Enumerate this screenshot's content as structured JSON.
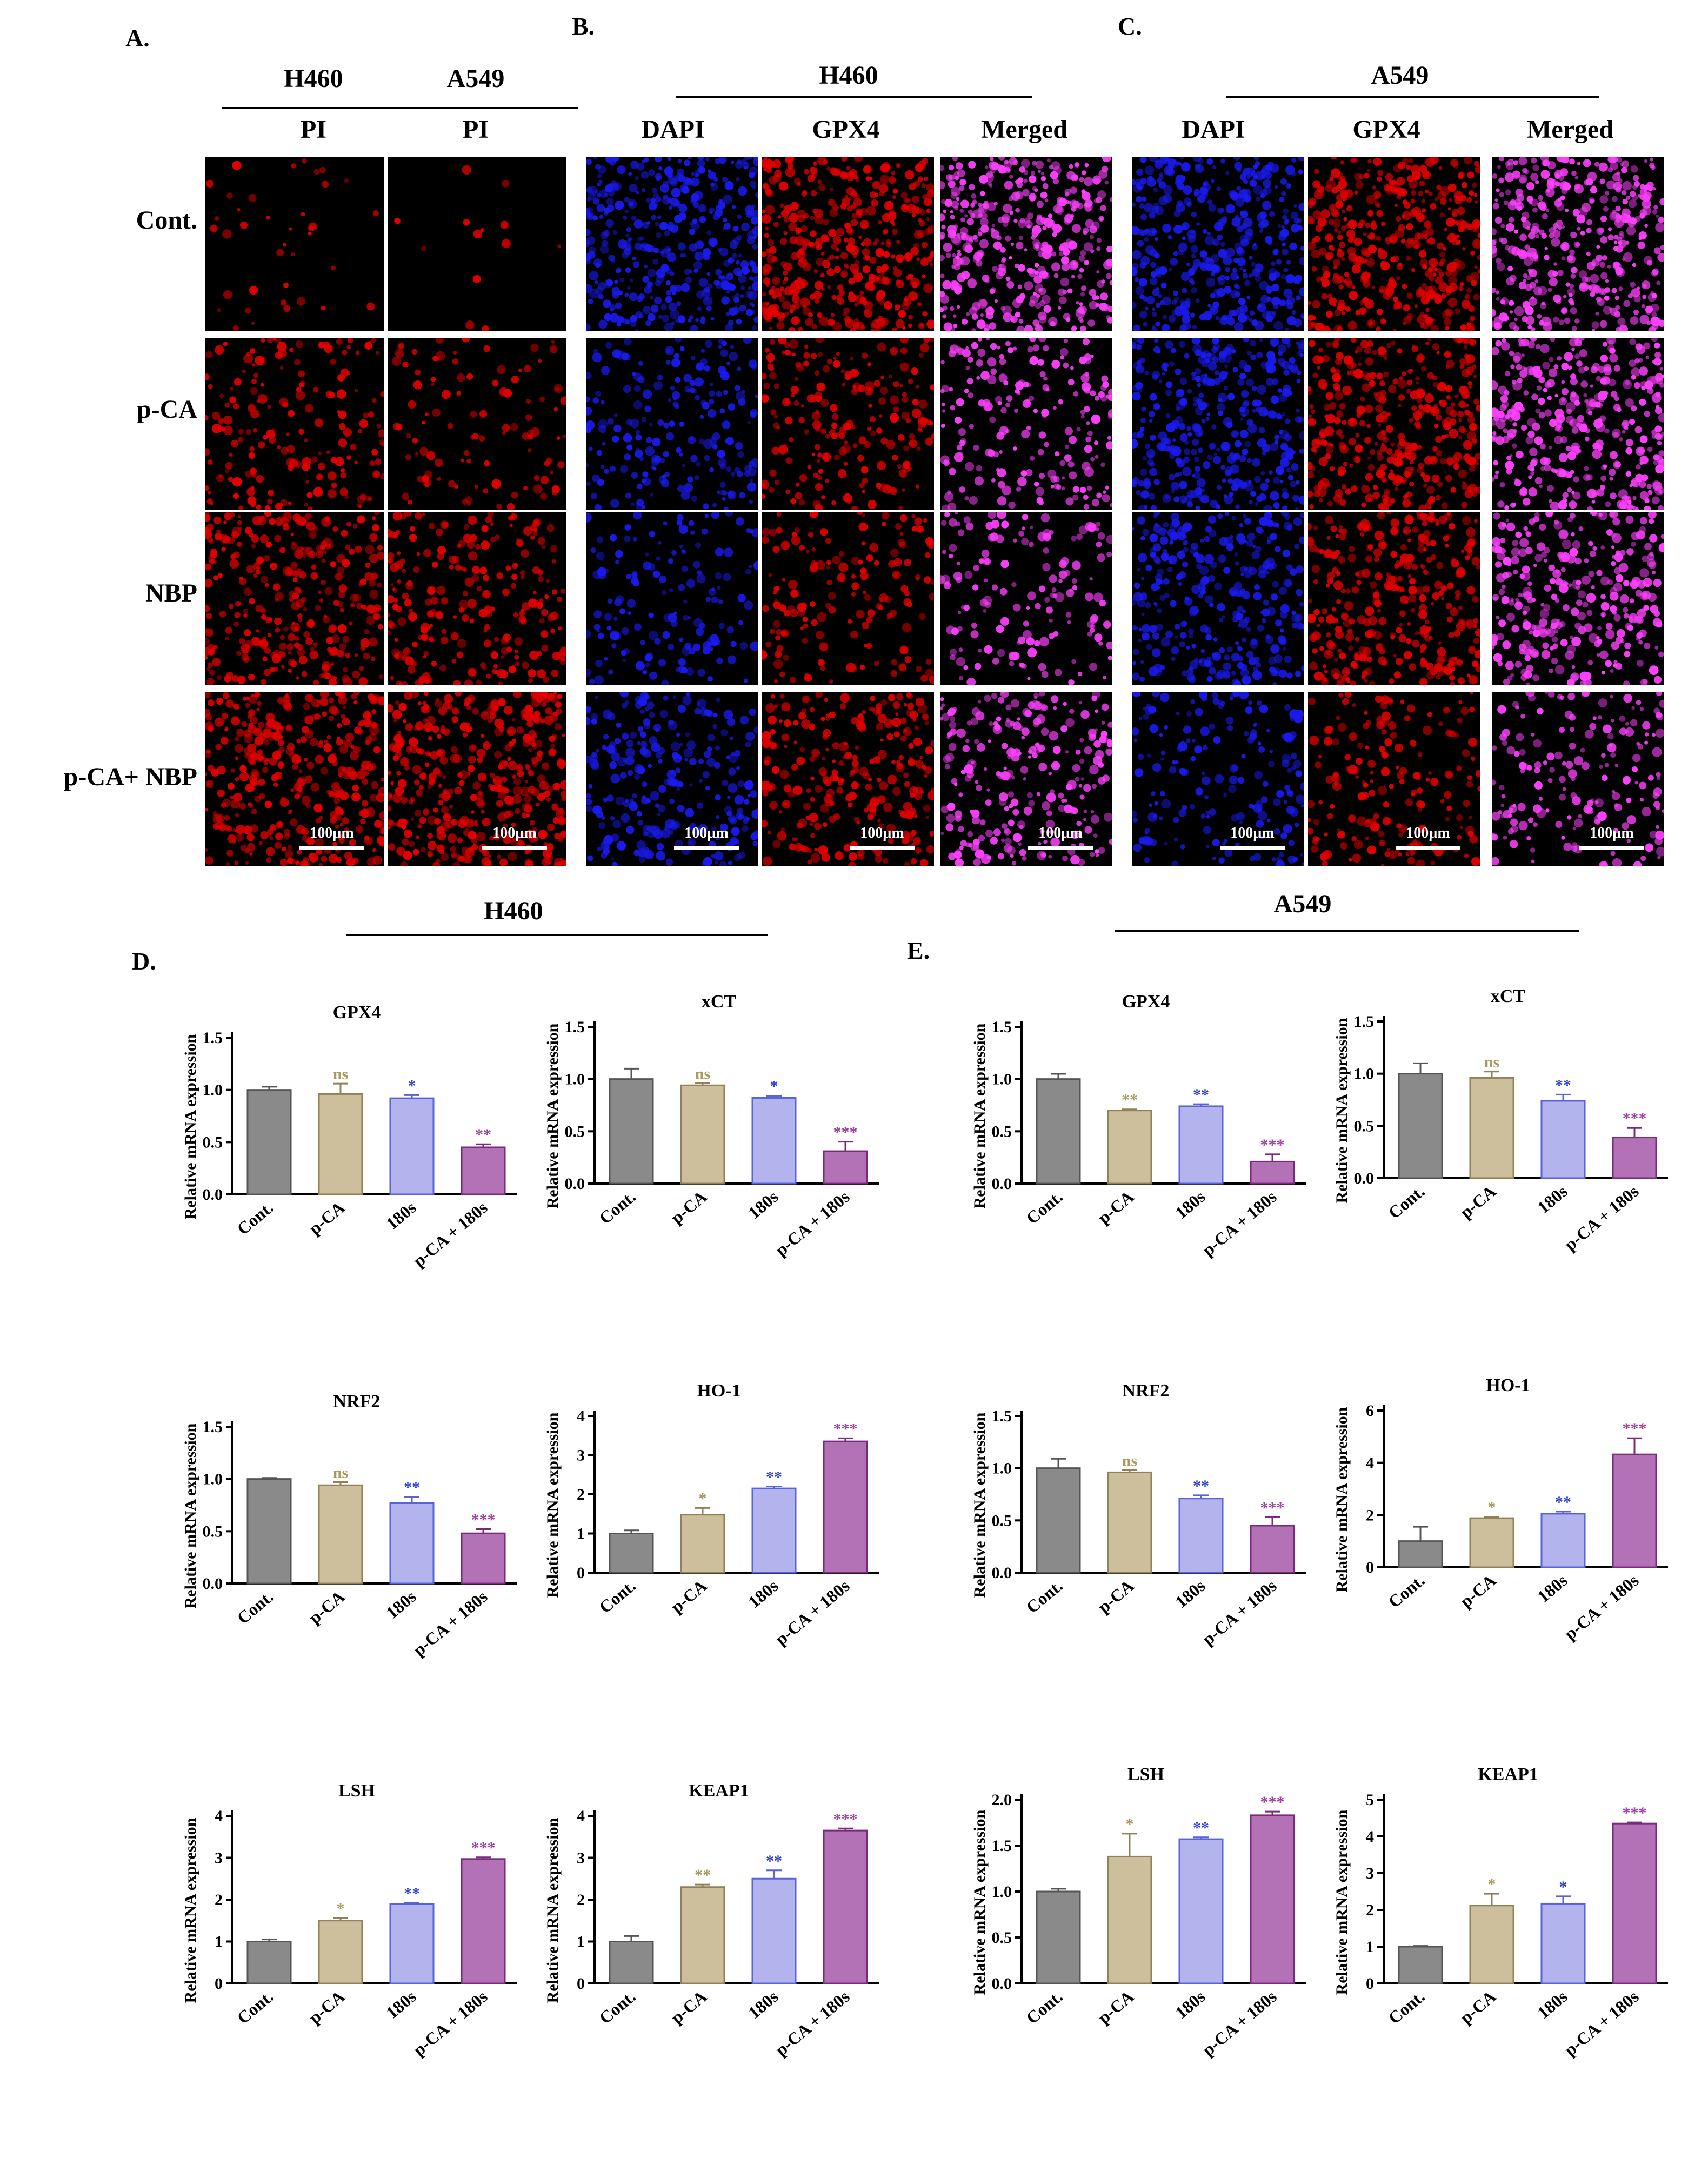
{
  "panels": {
    "A": "A.",
    "B": "B.",
    "C": "C.",
    "D": "D.",
    "E": "E."
  },
  "imaging": {
    "a_groups": [
      "H460",
      "A549"
    ],
    "a_stain": "PI",
    "b_group": "H460",
    "c_group": "A549",
    "stains": [
      "DAPI",
      "GPX4",
      "Merged"
    ],
    "rows": [
      "Cont.",
      "p-CA",
      "NBP",
      "p-CA+ NBP"
    ],
    "scale_bar": "100µm"
  },
  "charts_groups": {
    "d": "H460",
    "e": "A549"
  },
  "colors": {
    "cont": "#8a8a8a",
    "pca": "#cdbf9c",
    "s180": "#b3b3ee",
    "combo": "#b272b5",
    "sig_pca": "#a89a5c",
    "sig_180": "#2e3fd6",
    "sig_combo": "#9b3f9e",
    "red": "#e00000",
    "blue": "#1a1aee",
    "magenta": "#ff40ff"
  },
  "chart_data": [
    {
      "id": "d-gpx4",
      "type": "bar",
      "cell_line": "H460",
      "title": "GPX4",
      "ylabel": "Relative mRNA expression",
      "categories": [
        "Cont.",
        "p-CA",
        "180s",
        "p-CA + 180s"
      ],
      "values": [
        1.0,
        0.96,
        0.92,
        0.45
      ],
      "errors": [
        0.03,
        0.1,
        0.03,
        0.03
      ],
      "sig": [
        "",
        "ns",
        "*",
        "**"
      ],
      "ylim": [
        0,
        1.5
      ],
      "yticks": [
        "0.0",
        "0.5",
        "1.0",
        "1.5"
      ]
    },
    {
      "id": "d-xct",
      "type": "bar",
      "cell_line": "H460",
      "title": "xCT",
      "ylabel": "Relative mRNA expression",
      "categories": [
        "Cont.",
        "p-CA",
        "180s",
        "p-CA + 180s"
      ],
      "values": [
        1.0,
        0.94,
        0.82,
        0.31
      ],
      "errors": [
        0.1,
        0.02,
        0.02,
        0.09
      ],
      "sig": [
        "",
        "ns",
        "*",
        "***"
      ],
      "ylim": [
        0,
        1.5
      ],
      "yticks": [
        "0.0",
        "0.5",
        "1.0",
        "1.5"
      ]
    },
    {
      "id": "d-nrf2",
      "type": "bar",
      "cell_line": "H460",
      "title": "NRF2",
      "ylabel": "Relative mRNA expression",
      "categories": [
        "Cont.",
        "p-CA",
        "180s",
        "p-CA + 180s"
      ],
      "values": [
        1.0,
        0.94,
        0.77,
        0.48
      ],
      "errors": [
        0.01,
        0.03,
        0.06,
        0.04
      ],
      "sig": [
        "",
        "ns",
        "**",
        "***"
      ],
      "ylim": [
        0,
        1.5
      ],
      "yticks": [
        "0.0",
        "0.5",
        "1.0",
        "1.5"
      ]
    },
    {
      "id": "d-ho1",
      "type": "bar",
      "cell_line": "H460",
      "title": "HO-1",
      "ylabel": "Relative mRNA expression",
      "categories": [
        "Cont.",
        "p-CA",
        "180s",
        "p-CA + 180s"
      ],
      "values": [
        1.0,
        1.48,
        2.15,
        3.35
      ],
      "errors": [
        0.08,
        0.17,
        0.05,
        0.08
      ],
      "sig": [
        "",
        "*",
        "**",
        "***"
      ],
      "ylim": [
        0,
        4
      ],
      "yticks": [
        "0",
        "1",
        "2",
        "3",
        "4"
      ]
    },
    {
      "id": "d-lsh",
      "type": "bar",
      "cell_line": "H460",
      "title": "LSH",
      "ylabel": "Relative mRNA expression",
      "categories": [
        "Cont.",
        "p-CA",
        "180s",
        "p-CA + 180s"
      ],
      "values": [
        1.0,
        1.5,
        1.9,
        2.97
      ],
      "errors": [
        0.05,
        0.06,
        0.02,
        0.04
      ],
      "sig": [
        "",
        "*",
        "**",
        "***"
      ],
      "ylim": [
        0,
        4
      ],
      "yticks": [
        "0",
        "1",
        "2",
        "3",
        "4"
      ]
    },
    {
      "id": "d-keap1",
      "type": "bar",
      "cell_line": "H460",
      "title": "KEAP1",
      "ylabel": "Relative mRNA expression",
      "categories": [
        "Cont.",
        "p-CA",
        "180s",
        "p-CA + 180s"
      ],
      "values": [
        1.0,
        2.3,
        2.5,
        3.65
      ],
      "errors": [
        0.13,
        0.06,
        0.2,
        0.05
      ],
      "sig": [
        "",
        "**",
        "**",
        "***"
      ],
      "ylim": [
        0,
        4
      ],
      "yticks": [
        "0",
        "1",
        "2",
        "3",
        "4"
      ]
    },
    {
      "id": "e-gpx4",
      "type": "bar",
      "cell_line": "A549",
      "title": "GPX4",
      "ylabel": "Relative mRNA expression",
      "categories": [
        "Cont.",
        "p-CA",
        "180s",
        "p-CA + 180s"
      ],
      "values": [
        1.0,
        0.7,
        0.74,
        0.21
      ],
      "errors": [
        0.05,
        0.01,
        0.02,
        0.07
      ],
      "sig": [
        "",
        "**",
        "**",
        "***"
      ],
      "ylim": [
        0,
        1.5
      ],
      "yticks": [
        "0.0",
        "0.5",
        "1.0",
        "1.5"
      ]
    },
    {
      "id": "e-xct",
      "type": "bar",
      "cell_line": "A549",
      "title": "xCT",
      "ylabel": "Relative mRNA expression",
      "categories": [
        "Cont.",
        "p-CA",
        "180s",
        "p-CA + 180s"
      ],
      "values": [
        1.0,
        0.96,
        0.74,
        0.39
      ],
      "errors": [
        0.1,
        0.06,
        0.06,
        0.09
      ],
      "sig": [
        "",
        "ns",
        "**",
        "***"
      ],
      "ylim": [
        0,
        1.5
      ],
      "yticks": [
        "0.0",
        "0.5",
        "1.0",
        "1.5"
      ]
    },
    {
      "id": "e-nrf2",
      "type": "bar",
      "cell_line": "A549",
      "title": "NRF2",
      "ylabel": "Relative mRNA expression",
      "categories": [
        "Cont.",
        "p-CA",
        "180s",
        "p-CA + 180s"
      ],
      "values": [
        1.0,
        0.96,
        0.71,
        0.45
      ],
      "errors": [
        0.09,
        0.02,
        0.03,
        0.08
      ],
      "sig": [
        "",
        "ns",
        "**",
        "***"
      ],
      "ylim": [
        0,
        1.5
      ],
      "yticks": [
        "0.0",
        "0.5",
        "1.0",
        "1.5"
      ]
    },
    {
      "id": "e-ho1",
      "type": "bar",
      "cell_line": "A549",
      "title": "HO-1",
      "ylabel": "Relative mRNA expression",
      "categories": [
        "Cont.",
        "p-CA",
        "180s",
        "p-CA + 180s"
      ],
      "values": [
        1.0,
        1.88,
        2.05,
        4.32
      ],
      "errors": [
        0.55,
        0.05,
        0.08,
        0.62
      ],
      "sig": [
        "",
        "*",
        "**",
        "***"
      ],
      "ylim": [
        0,
        6
      ],
      "yticks": [
        "0",
        "2",
        "4",
        "6"
      ]
    },
    {
      "id": "e-lsh",
      "type": "bar",
      "cell_line": "A549",
      "title": "LSH",
      "ylabel": "Relative mRNA expression",
      "categories": [
        "Cont.",
        "p-CA",
        "180s",
        "p-CA + 180s"
      ],
      "values": [
        1.0,
        1.38,
        1.57,
        1.83
      ],
      "errors": [
        0.03,
        0.25,
        0.02,
        0.04
      ],
      "sig": [
        "",
        "*",
        "**",
        "***"
      ],
      "ylim": [
        0,
        2.0
      ],
      "yticks": [
        "0.0",
        "0.5",
        "1.0",
        "1.5",
        "2.0"
      ]
    },
    {
      "id": "e-keap1",
      "type": "bar",
      "cell_line": "A549",
      "title": "KEAP1",
      "ylabel": "Relative mRNA expression",
      "categories": [
        "Cont.",
        "p-CA",
        "180s",
        "p-CA + 180s"
      ],
      "values": [
        1.0,
        2.12,
        2.17,
        4.35
      ],
      "errors": [
        0.02,
        0.32,
        0.2,
        0.03
      ],
      "sig": [
        "",
        "*",
        "*",
        "***"
      ],
      "ylim": [
        0,
        5
      ],
      "yticks": [
        "0",
        "1",
        "2",
        "3",
        "4",
        "5"
      ]
    }
  ]
}
